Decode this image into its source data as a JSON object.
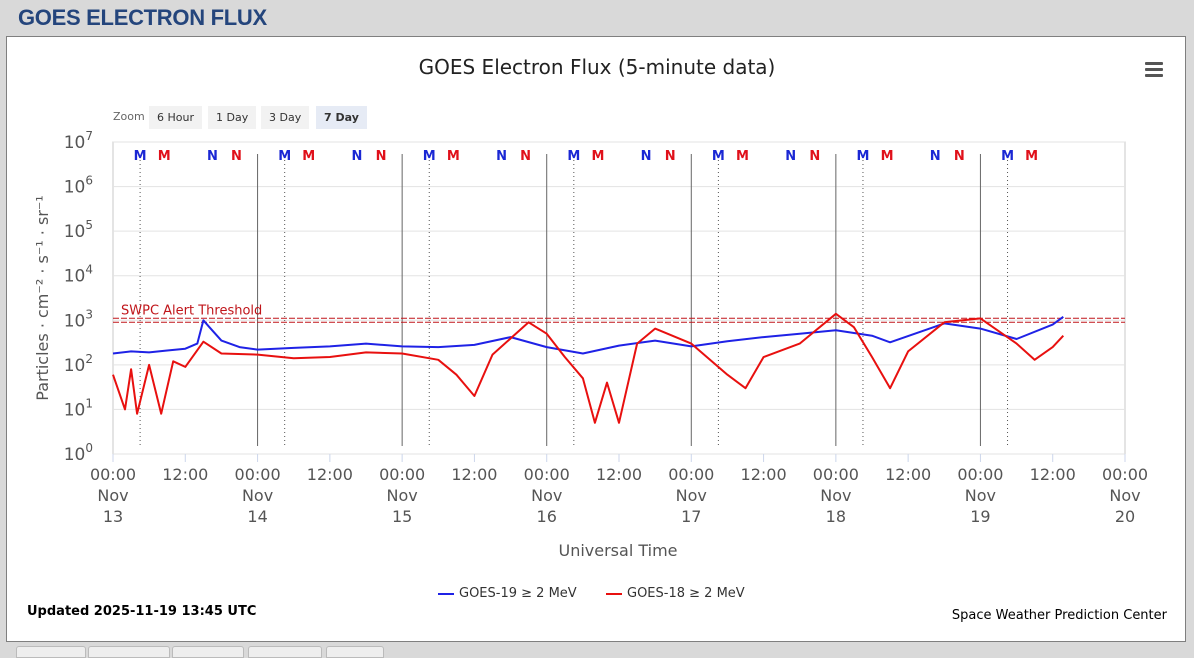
{
  "page": {
    "title": "GOES ELECTRON FLUX"
  },
  "toolbar": {
    "zoom_label": "Zoom",
    "zoom_options": [
      "6 Hour",
      "1 Day",
      "3 Day",
      "7 Day"
    ],
    "active_zoom": "7 Day",
    "menu_icon": "hamburger-menu-icon"
  },
  "footer": {
    "updated": "Updated 2025-11-19 13:45 UTC",
    "credit": "Space Weather Prediction Center"
  },
  "colors": {
    "goes19": "#1f22e6",
    "goes18": "#e8100f",
    "threshold": "#c0151a",
    "marker_m_blue": "#1a27d4",
    "marker_m_red": "#e0101a"
  },
  "chart_data": {
    "type": "line",
    "title": "GOES Electron Flux (5-minute data)",
    "xlabel": "Universal Time",
    "ylabel": "Particles · cm⁻² · s⁻¹ · sr⁻¹",
    "y_scale": "log",
    "ylim": [
      1,
      10000000
    ],
    "y_ticks": [
      {
        "value": 1,
        "base": "10",
        "exp": "0"
      },
      {
        "value": 10,
        "base": "10",
        "exp": "1"
      },
      {
        "value": 100,
        "base": "10",
        "exp": "2"
      },
      {
        "value": 1000,
        "base": "10",
        "exp": "3"
      },
      {
        "value": 10000,
        "base": "10",
        "exp": "4"
      },
      {
        "value": 100000,
        "base": "10",
        "exp": "5"
      },
      {
        "value": 1000000,
        "base": "10",
        "exp": "6"
      },
      {
        "value": 10000000,
        "base": "10",
        "exp": "7"
      }
    ],
    "xlim": [
      "2025-11-13 00:00",
      "2025-11-20 00:00"
    ],
    "x_ticks": [
      {
        "x": "2025-11-13 00:00",
        "time": "00:00",
        "month": "Nov",
        "day": "13"
      },
      {
        "x": "2025-11-13 12:00",
        "time": "12:00"
      },
      {
        "x": "2025-11-14 00:00",
        "time": "00:00",
        "month": "Nov",
        "day": "14"
      },
      {
        "x": "2025-11-14 12:00",
        "time": "12:00"
      },
      {
        "x": "2025-11-15 00:00",
        "time": "00:00",
        "month": "Nov",
        "day": "15"
      },
      {
        "x": "2025-11-15 12:00",
        "time": "12:00"
      },
      {
        "x": "2025-11-16 00:00",
        "time": "00:00",
        "month": "Nov",
        "day": "16"
      },
      {
        "x": "2025-11-16 12:00",
        "time": "12:00"
      },
      {
        "x": "2025-11-17 00:00",
        "time": "00:00",
        "month": "Nov",
        "day": "17"
      },
      {
        "x": "2025-11-17 12:00",
        "time": "12:00"
      },
      {
        "x": "2025-11-18 00:00",
        "time": "00:00",
        "month": "Nov",
        "day": "18"
      },
      {
        "x": "2025-11-18 12:00",
        "time": "12:00"
      },
      {
        "x": "2025-11-19 00:00",
        "time": "00:00",
        "month": "Nov",
        "day": "19"
      },
      {
        "x": "2025-11-19 12:00",
        "time": "12:00"
      },
      {
        "x": "2025-11-20 00:00",
        "time": "00:00",
        "month": "Nov",
        "day": "20"
      }
    ],
    "grid": true,
    "threshold": {
      "value": 1000,
      "label": "SWPC Alert Threshold"
    },
    "legend_position": "bottom-center",
    "series": [
      {
        "name": "GOES-19 ≥ 2 MeV",
        "color": "#1f22e6",
        "points": [
          [
            "2025-11-13 00:00",
            180
          ],
          [
            "2025-11-13 03:00",
            200
          ],
          [
            "2025-11-13 06:00",
            190
          ],
          [
            "2025-11-13 09:00",
            210
          ],
          [
            "2025-11-13 12:00",
            230
          ],
          [
            "2025-11-13 14:00",
            300
          ],
          [
            "2025-11-13 15:00",
            1000
          ],
          [
            "2025-11-13 16:00",
            700
          ],
          [
            "2025-11-13 18:00",
            350
          ],
          [
            "2025-11-13 21:00",
            250
          ],
          [
            "2025-11-14 00:00",
            220
          ],
          [
            "2025-11-14 06:00",
            240
          ],
          [
            "2025-11-14 12:00",
            260
          ],
          [
            "2025-11-14 18:00",
            300
          ],
          [
            "2025-11-15 00:00",
            260
          ],
          [
            "2025-11-15 06:00",
            250
          ],
          [
            "2025-11-15 12:00",
            280
          ],
          [
            "2025-11-15 18:00",
            420
          ],
          [
            "2025-11-16 00:00",
            250
          ],
          [
            "2025-11-16 06:00",
            180
          ],
          [
            "2025-11-16 12:00",
            270
          ],
          [
            "2025-11-16 18:00",
            350
          ],
          [
            "2025-11-17 00:00",
            260
          ],
          [
            "2025-11-17 06:00",
            340
          ],
          [
            "2025-11-17 12:00",
            420
          ],
          [
            "2025-11-17 18:00",
            500
          ],
          [
            "2025-11-18 00:00",
            600
          ],
          [
            "2025-11-18 06:00",
            450
          ],
          [
            "2025-11-18 09:00",
            320
          ],
          [
            "2025-11-18 18:00",
            850
          ],
          [
            "2025-11-19 00:00",
            650
          ],
          [
            "2025-11-19 06:00",
            380
          ],
          [
            "2025-11-19 12:00",
            800
          ],
          [
            "2025-11-19 13:45",
            1200
          ]
        ]
      },
      {
        "name": "GOES-18 ≥ 2 MeV",
        "color": "#e8100f",
        "points": [
          [
            "2025-11-13 00:00",
            60
          ],
          [
            "2025-11-13 02:00",
            10
          ],
          [
            "2025-11-13 03:00",
            80
          ],
          [
            "2025-11-13 04:00",
            8
          ],
          [
            "2025-11-13 06:00",
            100
          ],
          [
            "2025-11-13 08:00",
            8
          ],
          [
            "2025-11-13 10:00",
            120
          ],
          [
            "2025-11-13 12:00",
            90
          ],
          [
            "2025-11-13 15:00",
            330
          ],
          [
            "2025-11-13 18:00",
            180
          ],
          [
            "2025-11-14 00:00",
            170
          ],
          [
            "2025-11-14 06:00",
            140
          ],
          [
            "2025-11-14 12:00",
            150
          ],
          [
            "2025-11-14 18:00",
            190
          ],
          [
            "2025-11-15 00:00",
            180
          ],
          [
            "2025-11-15 06:00",
            130
          ],
          [
            "2025-11-15 09:00",
            60
          ],
          [
            "2025-11-15 12:00",
            20
          ],
          [
            "2025-11-15 15:00",
            170
          ],
          [
            "2025-11-15 21:00",
            900
          ],
          [
            "2025-11-16 00:00",
            500
          ],
          [
            "2025-11-16 03:00",
            150
          ],
          [
            "2025-11-16 06:00",
            50
          ],
          [
            "2025-11-16 08:00",
            5
          ],
          [
            "2025-11-16 10:00",
            40
          ],
          [
            "2025-11-16 12:00",
            5
          ],
          [
            "2025-11-16 15:00",
            300
          ],
          [
            "2025-11-16 18:00",
            650
          ],
          [
            "2025-11-17 00:00",
            300
          ],
          [
            "2025-11-17 06:00",
            60
          ],
          [
            "2025-11-17 09:00",
            30
          ],
          [
            "2025-11-17 12:00",
            150
          ],
          [
            "2025-11-17 18:00",
            300
          ],
          [
            "2025-11-18 00:00",
            1400
          ],
          [
            "2025-11-18 03:00",
            700
          ],
          [
            "2025-11-18 06:00",
            150
          ],
          [
            "2025-11-18 09:00",
            30
          ],
          [
            "2025-11-18 12:00",
            200
          ],
          [
            "2025-11-18 18:00",
            900
          ],
          [
            "2025-11-19 00:00",
            1100
          ],
          [
            "2025-11-19 06:00",
            300
          ],
          [
            "2025-11-19 09:00",
            130
          ],
          [
            "2025-11-19 12:00",
            250
          ],
          [
            "2025-11-19 13:45",
            450
          ]
        ]
      }
    ],
    "markers": [
      {
        "x": "2025-11-13 04:30",
        "label": "M",
        "color": "#1a27d4"
      },
      {
        "x": "2025-11-13 08:30",
        "label": "M",
        "color": "#e0101a"
      },
      {
        "x": "2025-11-13 16:30",
        "label": "N",
        "color": "#1a27d4"
      },
      {
        "x": "2025-11-13 20:30",
        "label": "N",
        "color": "#e0101a"
      },
      {
        "x": "2025-11-14 04:30",
        "label": "M",
        "color": "#1a27d4"
      },
      {
        "x": "2025-11-14 08:30",
        "label": "M",
        "color": "#e0101a"
      },
      {
        "x": "2025-11-14 16:30",
        "label": "N",
        "color": "#1a27d4"
      },
      {
        "x": "2025-11-14 20:30",
        "label": "N",
        "color": "#e0101a"
      },
      {
        "x": "2025-11-15 04:30",
        "label": "M",
        "color": "#1a27d4"
      },
      {
        "x": "2025-11-15 08:30",
        "label": "M",
        "color": "#e0101a"
      },
      {
        "x": "2025-11-15 16:30",
        "label": "N",
        "color": "#1a27d4"
      },
      {
        "x": "2025-11-15 20:30",
        "label": "N",
        "color": "#e0101a"
      },
      {
        "x": "2025-11-16 04:30",
        "label": "M",
        "color": "#1a27d4"
      },
      {
        "x": "2025-11-16 08:30",
        "label": "M",
        "color": "#e0101a"
      },
      {
        "x": "2025-11-16 16:30",
        "label": "N",
        "color": "#1a27d4"
      },
      {
        "x": "2025-11-16 20:30",
        "label": "N",
        "color": "#e0101a"
      },
      {
        "x": "2025-11-17 04:30",
        "label": "M",
        "color": "#1a27d4"
      },
      {
        "x": "2025-11-17 08:30",
        "label": "M",
        "color": "#e0101a"
      },
      {
        "x": "2025-11-17 16:30",
        "label": "N",
        "color": "#1a27d4"
      },
      {
        "x": "2025-11-17 20:30",
        "label": "N",
        "color": "#e0101a"
      },
      {
        "x": "2025-11-18 04:30",
        "label": "M",
        "color": "#1a27d4"
      },
      {
        "x": "2025-11-18 08:30",
        "label": "M",
        "color": "#e0101a"
      },
      {
        "x": "2025-11-18 16:30",
        "label": "N",
        "color": "#1a27d4"
      },
      {
        "x": "2025-11-18 20:30",
        "label": "N",
        "color": "#e0101a"
      },
      {
        "x": "2025-11-19 04:30",
        "label": "M",
        "color": "#1a27d4"
      },
      {
        "x": "2025-11-19 08:30",
        "label": "M",
        "color": "#e0101a"
      }
    ]
  }
}
